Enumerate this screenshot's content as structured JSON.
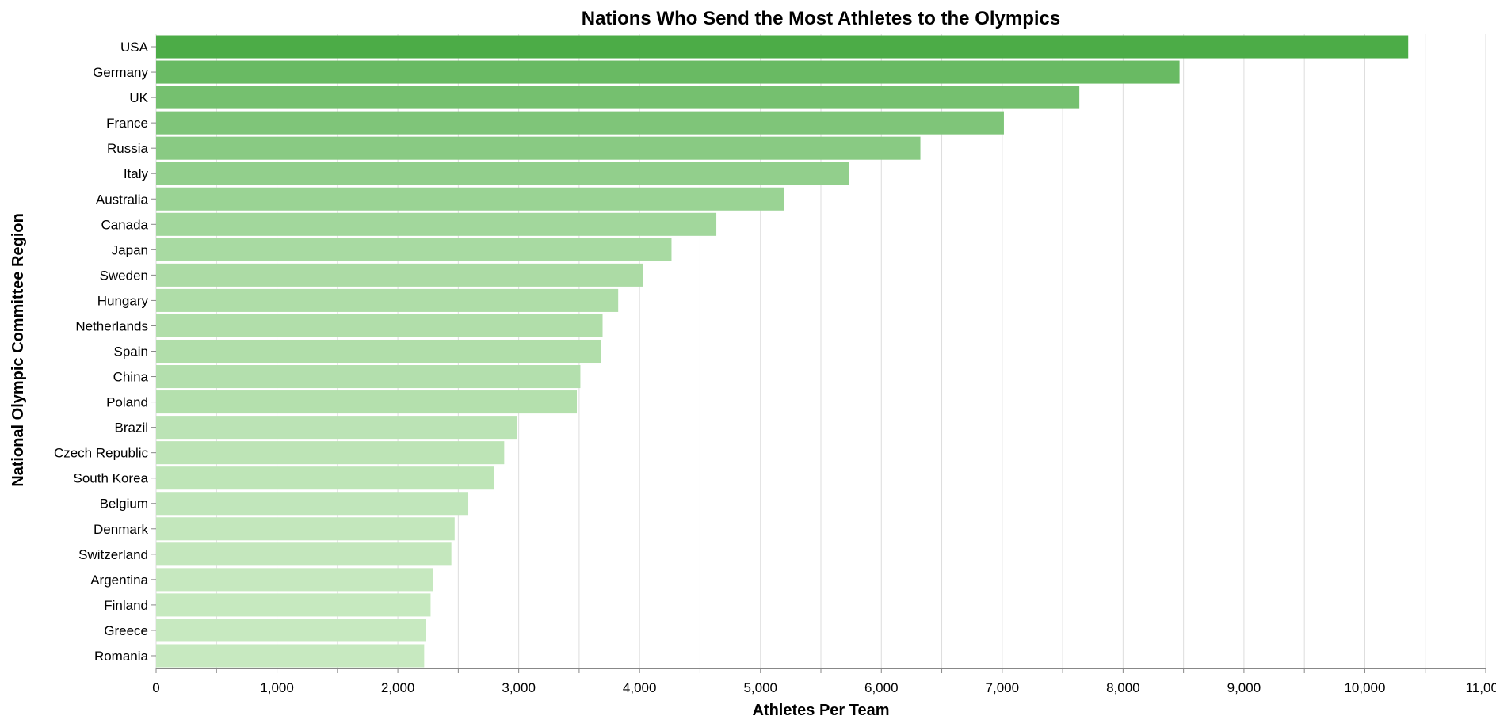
{
  "chart_data": {
    "type": "bar",
    "orientation": "horizontal",
    "title": "Nations Who Send the Most Athletes to the Olympics",
    "xlabel": "Athletes Per Team",
    "ylabel": "National Olympic Committee Region",
    "xlim": [
      0,
      11000
    ],
    "x_ticks": [
      "0",
      "1,000",
      "2,000",
      "3,000",
      "4,000",
      "5,000",
      "6,000",
      "7,000",
      "8,000",
      "9,000",
      "10,000",
      "11,000"
    ],
    "grid": true,
    "legend": "none",
    "color_scale": {
      "low": "#c7e9c0",
      "high": "#4cac47"
    },
    "categories": [
      "USA",
      "Germany",
      "UK",
      "France",
      "Russia",
      "Italy",
      "Australia",
      "Canada",
      "Japan",
      "Sweden",
      "Hungary",
      "Netherlands",
      "Spain",
      "China",
      "Poland",
      "Brazil",
      "Czech Republic",
      "South Korea",
      "Belgium",
      "Denmark",
      "Switzerland",
      "Argentina",
      "Finland",
      "Greece",
      "Romania"
    ],
    "values": [
      10359,
      8467,
      7638,
      7014,
      6323,
      5735,
      5193,
      4635,
      4264,
      4030,
      3823,
      3694,
      3684,
      3510,
      3481,
      2987,
      2880,
      2793,
      2583,
      2470,
      2443,
      2293,
      2271,
      2230,
      2218
    ]
  }
}
